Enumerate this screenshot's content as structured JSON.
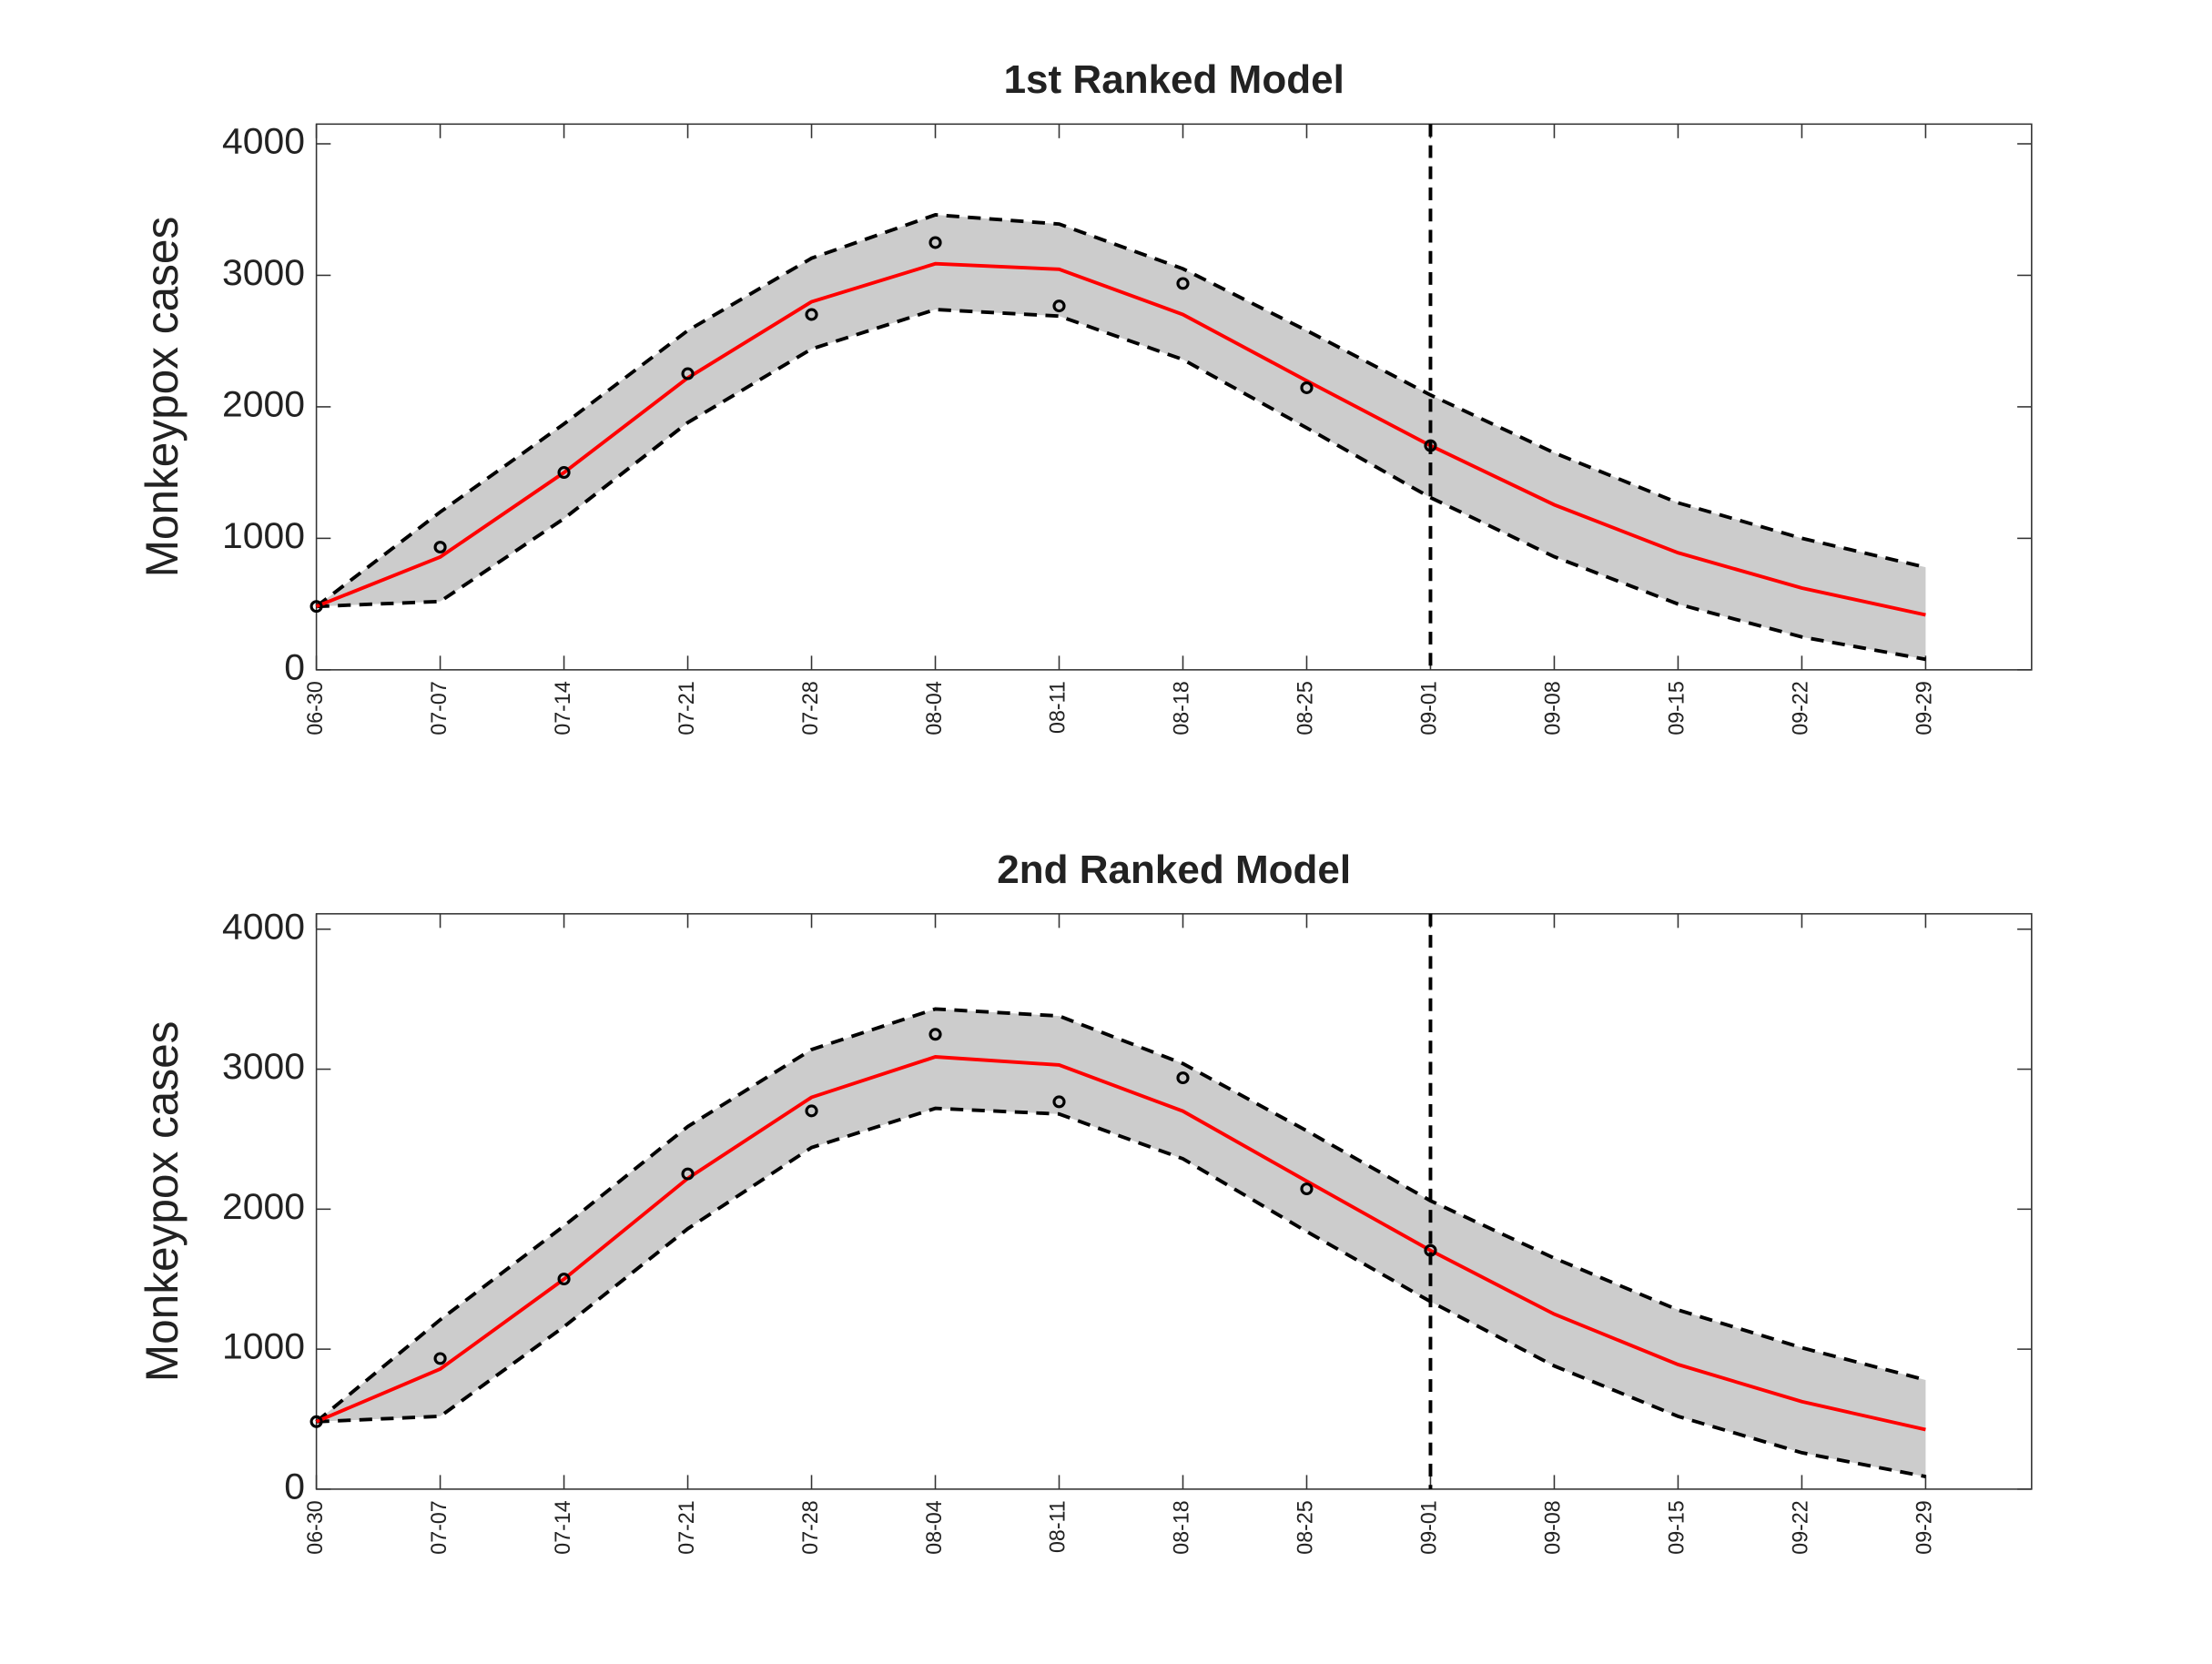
{
  "chart_data": [
    {
      "type": "line",
      "title": "1st Ranked Model",
      "ylabel": "Monkeypox cases",
      "categories": [
        "06-30",
        "07-07",
        "07-14",
        "07-21",
        "07-28",
        "08-04",
        "08-11",
        "08-18",
        "08-25",
        "09-01",
        "09-08",
        "09-15",
        "09-22",
        "09-29"
      ],
      "ylim": [
        0,
        4150
      ],
      "yticks": [
        0,
        1000,
        2000,
        3000,
        4000
      ],
      "vline_at": "09-01",
      "band_color": "#cccccc",
      "observed": {
        "color": "#000000",
        "values": [
          482,
          933,
          1501,
          2252,
          2702,
          3249,
          2767,
          2938,
          2145,
          1705
        ]
      },
      "fit": {
        "color": "#ff0000",
        "values": [
          482,
          858,
          1500,
          2220,
          2799,
          3088,
          3046,
          2702,
          2198,
          1705,
          1255,
          890,
          622,
          418
        ]
      },
      "upper": {
        "color": "#000000",
        "values": [
          482,
          1200,
          1870,
          2580,
          3130,
          3460,
          3390,
          3050,
          2580,
          2090,
          1650,
          1270,
          1000,
          780
        ]
      },
      "lower": {
        "color": "#000000",
        "values": [
          482,
          520,
          1150,
          1880,
          2440,
          2740,
          2690,
          2360,
          1840,
          1310,
          860,
          500,
          250,
          80
        ]
      }
    },
    {
      "type": "line",
      "title": "2nd Ranked Model",
      "ylabel": "Monkeypox cases",
      "categories": [
        "06-30",
        "07-07",
        "07-14",
        "07-21",
        "07-28",
        "08-04",
        "08-11",
        "08-18",
        "08-25",
        "09-01",
        "09-08",
        "09-15",
        "09-22",
        "09-29"
      ],
      "ylim": [
        0,
        4110
      ],
      "yticks": [
        0,
        1000,
        2000,
        3000,
        4000
      ],
      "vline_at": "09-01",
      "band_color": "#cccccc",
      "observed": {
        "color": "#000000",
        "values": [
          482,
          933,
          1501,
          2252,
          2702,
          3249,
          2767,
          2938,
          2145,
          1705
        ]
      },
      "fit": {
        "color": "#ff0000",
        "values": [
          482,
          858,
          1500,
          2220,
          2799,
          3088,
          3030,
          2700,
          2200,
          1705,
          1250,
          890,
          625,
          425
        ]
      },
      "upper": {
        "color": "#000000",
        "values": [
          482,
          1210,
          1880,
          2590,
          3140,
          3430,
          3380,
          3040,
          2560,
          2060,
          1650,
          1280,
          1010,
          780
        ]
      },
      "lower": {
        "color": "#000000",
        "values": [
          482,
          520,
          1160,
          1860,
          2440,
          2720,
          2680,
          2360,
          1840,
          1340,
          880,
          520,
          260,
          90
        ]
      }
    }
  ]
}
